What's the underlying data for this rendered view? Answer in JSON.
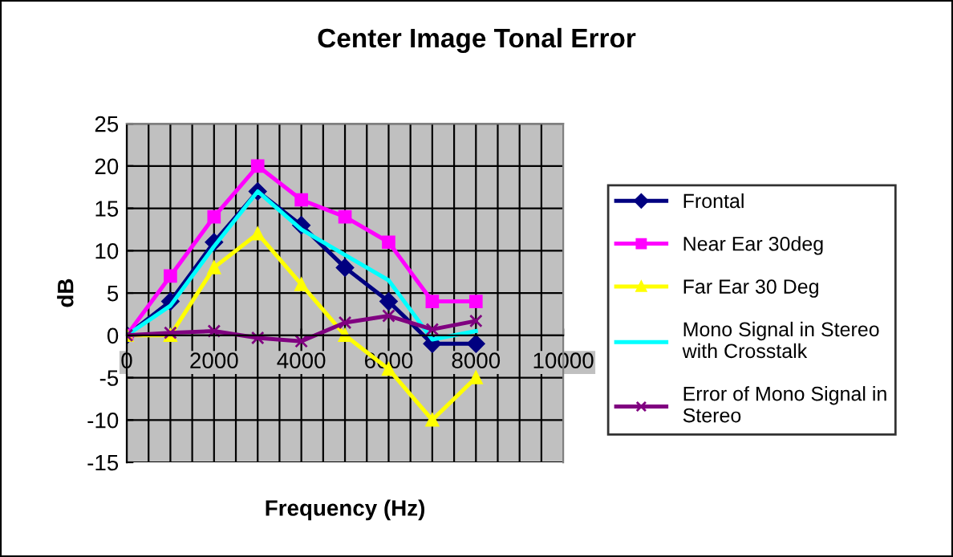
{
  "chart_data": {
    "type": "line",
    "title": "Center Image Tonal Error",
    "xlabel": "Frequency (Hz)",
    "ylabel": "dB",
    "x": [
      0,
      1000,
      2000,
      3000,
      4000,
      5000,
      6000,
      7000,
      8000
    ],
    "xlim": [
      0,
      10000
    ],
    "xticks": [
      0,
      2000,
      4000,
      6000,
      8000,
      10000
    ],
    "ylim": [
      -15,
      25
    ],
    "yticks": [
      -15,
      -10,
      -5,
      0,
      5,
      10,
      15,
      20,
      25
    ],
    "grid": true,
    "legend": "right",
    "series": [
      {
        "name": "Frontal",
        "color": "#000080",
        "marker": "diamond",
        "values": [
          0,
          4,
          11,
          17,
          13,
          8,
          4,
          -1,
          -1
        ]
      },
      {
        "name": "Near Ear 30deg",
        "color": "#ff00ff",
        "marker": "square",
        "values": [
          0,
          7,
          14,
          20,
          16,
          14,
          11,
          4,
          4
        ]
      },
      {
        "name": "Far Ear 30 Deg",
        "color": "#ffff00",
        "marker": "triangle",
        "values": [
          0,
          0,
          8,
          12,
          6,
          0,
          -4,
          -10,
          -5
        ]
      },
      {
        "name": "Mono Signal in Stereo with Crosstalk",
        "color": "#00ffff",
        "marker": "none",
        "values": [
          0,
          3.5,
          10.5,
          17,
          12.5,
          9.5,
          6.5,
          -0.5,
          0.5
        ]
      },
      {
        "name": "Error of Mono Signal in Stereo",
        "color": "#800080",
        "marker": "cross",
        "values": [
          0,
          0.3,
          0.5,
          -0.3,
          -0.7,
          1.5,
          2.3,
          0.7,
          1.7
        ]
      }
    ]
  }
}
